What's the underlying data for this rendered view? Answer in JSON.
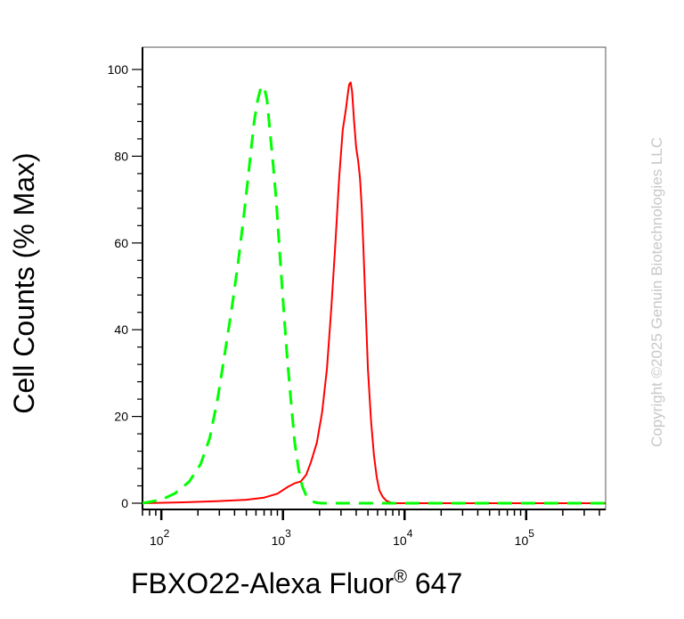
{
  "chart_data": {
    "type": "line",
    "xlabel": "FBXO22-Alexa Fluor",
    "xlabel_mark": "®",
    "xlabel_suffix": " 647",
    "ylabel": "Cell Counts (% Max)",
    "xscale": "log",
    "xlim": [
      70,
      450000
    ],
    "ylim": [
      -1,
      104
    ],
    "y_ticks": [
      0,
      20,
      40,
      60,
      80,
      100
    ],
    "x_ticks": [
      {
        "value": 100,
        "base": "10",
        "exp": "2"
      },
      {
        "value": 1000,
        "base": "10",
        "exp": "3"
      },
      {
        "value": 10000,
        "base": "10",
        "exp": "4"
      },
      {
        "value": 100000,
        "base": "10",
        "exp": "5"
      }
    ],
    "grid": false,
    "legend": "none",
    "watermark": "Copyright ©2025 Genuin Biotechnologies LLC",
    "series": [
      {
        "color": "#ff0000",
        "style": "solid",
        "x": [
          70,
          150,
          300,
          500,
          700,
          900,
          1100,
          1250,
          1400,
          1550,
          1700,
          1900,
          2100,
          2300,
          2500,
          2700,
          2900,
          3100,
          3300,
          3400,
          3500,
          3600,
          3700,
          3850,
          4000,
          4150,
          4300,
          4450,
          4600,
          4800,
          5000,
          5300,
          5600,
          5900,
          6200,
          6600,
          7000,
          7400,
          7800,
          8500,
          10000,
          20000,
          60000,
          150000,
          450000
        ],
        "y": [
          0,
          0.2,
          0.5,
          0.8,
          1.3,
          2.2,
          3.8,
          4.6,
          5,
          6.5,
          9.5,
          14,
          21,
          31,
          45,
          60,
          75,
          86,
          91,
          94,
          96.5,
          97,
          95,
          88,
          82,
          79,
          75,
          68,
          58,
          44,
          31,
          19,
          11,
          6,
          3,
          1.5,
          0.7,
          0.3,
          0.1,
          0,
          0,
          0,
          0,
          0,
          0
        ]
      },
      {
        "color": "#00ff00",
        "style": "dashed",
        "x": [
          70,
          100,
          130,
          170,
          210,
          250,
          290,
          330,
          380,
          430,
          480,
          530,
          580,
          620,
          660,
          700,
          740,
          780,
          830,
          880,
          940,
          1000,
          1080,
          1160,
          1250,
          1340,
          1440,
          1540,
          1640,
          1750,
          1900,
          2100,
          3000,
          10000,
          100000,
          450000
        ],
        "y": [
          0,
          0.8,
          2.3,
          5,
          9,
          15,
          24,
          34,
          45,
          56,
          67,
          78,
          88,
          93,
          96,
          96,
          93,
          86,
          78,
          70,
          58,
          47,
          34,
          24,
          14,
          8,
          4,
          2,
          1,
          0.4,
          0.1,
          0,
          0,
          0,
          0,
          0
        ]
      }
    ]
  }
}
